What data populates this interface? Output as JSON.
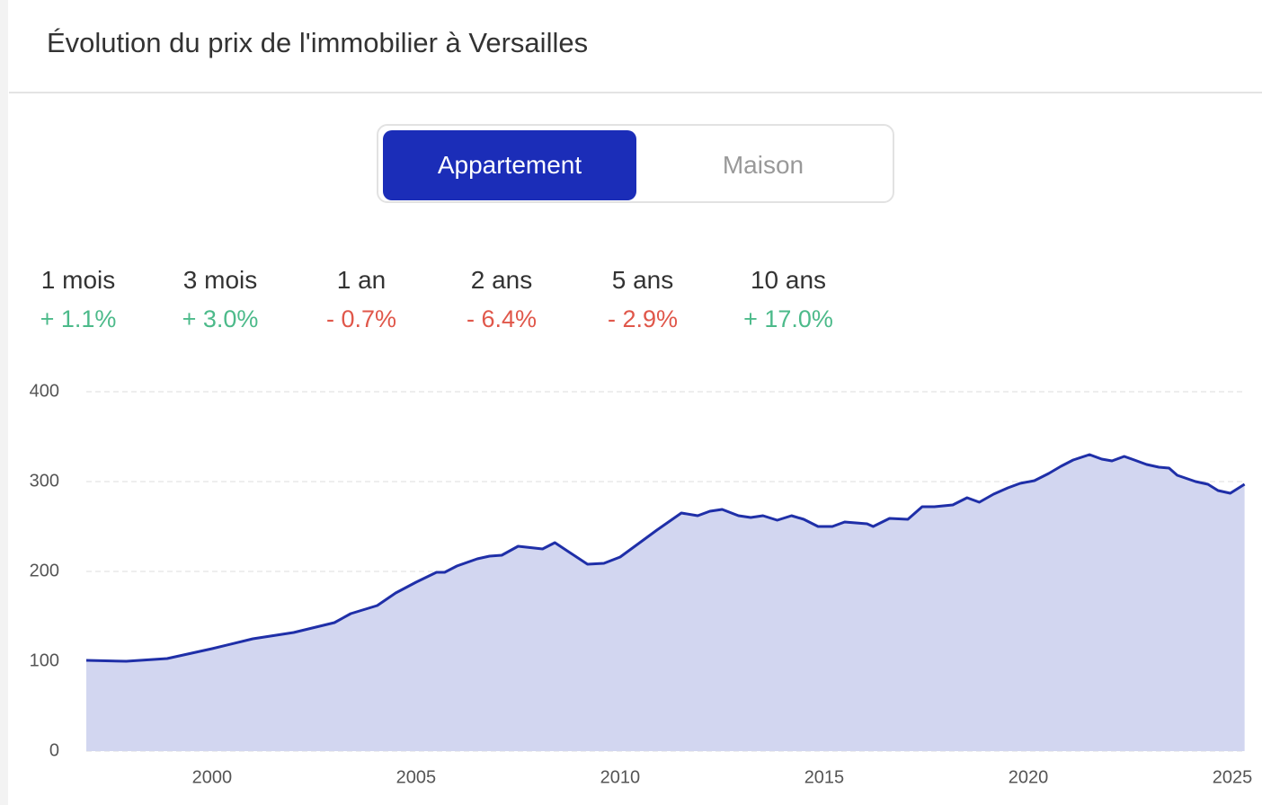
{
  "header": {
    "title": "Évolution du prix de l'immobilier à Versailles"
  },
  "toggle": {
    "options": [
      "Appartement",
      "Maison"
    ],
    "active": 0
  },
  "stats": [
    {
      "label": "1 mois",
      "value": "+ 1.1%"
    },
    {
      "label": "3 mois",
      "value": "+ 3.0%"
    },
    {
      "label": "1 an",
      "value": "- 0.7%"
    },
    {
      "label": "2 ans",
      "value": "- 6.4%"
    },
    {
      "label": "5 ans",
      "value": "- 2.9%"
    },
    {
      "label": "10 ans",
      "value": "+ 17.0%"
    }
  ],
  "chart_data": {
    "type": "area",
    "color": "#1f2fa8",
    "grid": true,
    "x": [
      1996.92,
      1997.9,
      1998.9,
      2000,
      2001,
      2002,
      2003,
      2003.4,
      2004.05,
      2004.5,
      2005,
      2005.5,
      2005.7,
      2006,
      2006.5,
      2006.8,
      2007.1,
      2007.5,
      2007.9,
      2008.1,
      2008.4,
      2008.8,
      2009.2,
      2009.6,
      2010,
      2010.45,
      2010.9,
      2011.5,
      2011.9,
      2012.2,
      2012.5,
      2012.9,
      2013.2,
      2013.5,
      2013.85,
      2014.2,
      2014.5,
      2014.85,
      2015.2,
      2015.5,
      2016.05,
      2016.2,
      2016.6,
      2017.05,
      2017.4,
      2017.7,
      2018.15,
      2018.5,
      2018.8,
      2019.15,
      2019.5,
      2019.8,
      2020.15,
      2020.5,
      2020.8,
      2021.1,
      2021.5,
      2021.8,
      2022.05,
      2022.35,
      2022.6,
      2022.9,
      2023.2,
      2023.45,
      2023.65,
      2024.1,
      2024.4,
      2024.65,
      2024.95,
      2025.3
    ],
    "values": [
      101,
      100,
      103,
      114,
      125,
      132,
      143,
      153,
      162,
      176,
      188,
      199,
      199,
      206,
      214,
      217,
      218,
      228,
      226,
      225,
      232,
      220,
      208,
      209,
      216,
      231,
      246,
      265,
      262,
      267,
      269,
      262,
      260,
      262,
      257,
      262,
      258,
      250,
      250,
      255,
      253,
      250,
      259,
      258,
      272,
      272,
      274,
      282,
      277,
      286,
      293,
      298,
      301,
      309,
      317,
      324,
      330,
      325,
      323,
      328,
      324,
      319,
      316,
      315,
      307,
      300,
      297,
      290,
      287,
      297
    ],
    "xlim": [
      1996.92,
      2025.33
    ],
    "ylim": [
      0,
      400
    ],
    "xticks": [
      2000,
      2005,
      2010,
      2015,
      2020,
      2025
    ],
    "yticks": [
      0,
      100,
      200,
      300,
      400
    ]
  }
}
